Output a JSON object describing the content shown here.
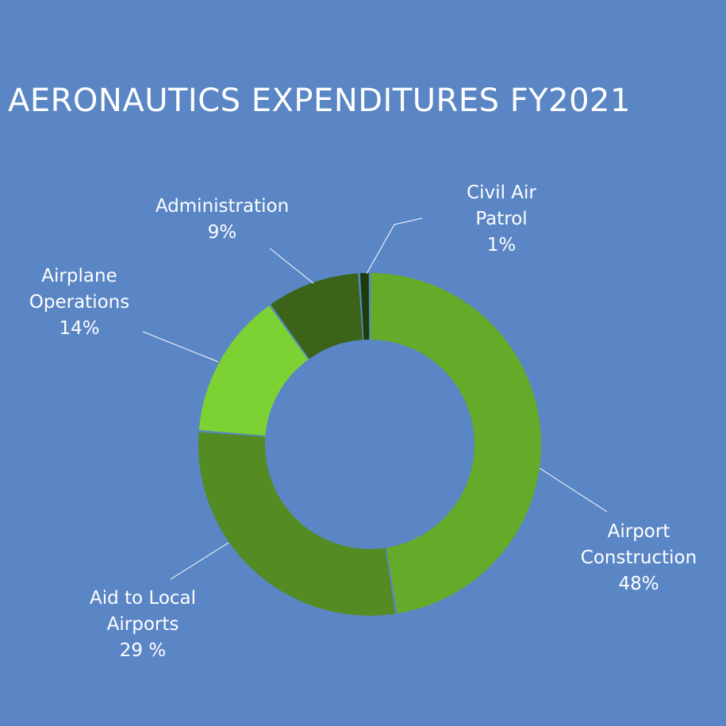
{
  "chart_data": {
    "type": "pie",
    "style": "donut",
    "title": "AERONAUTICS EXPENDITURES FY2021",
    "slices": [
      {
        "name": "Airport Construction",
        "label_lines": [
          "Airport",
          "Construction",
          "48%"
        ],
        "value": 48,
        "color": "#65aa29"
      },
      {
        "name": "Aid to Local Airports",
        "label_lines": [
          "Aid to Local",
          "Airports",
          "29 %"
        ],
        "value": 29,
        "color": "#548b23"
      },
      {
        "name": "Airplane Operations",
        "label_lines": [
          "Airplane",
          "Operations",
          "14%"
        ],
        "value": 14,
        "color": "#7cd233"
      },
      {
        "name": "Administration",
        "label_lines": [
          "Administration",
          "9%"
        ],
        "value": 9,
        "color": "#3b6419"
      },
      {
        "name": "Civil Air Patrol",
        "label_lines": [
          "Civil Air",
          "Patrol",
          "1%"
        ],
        "value": 1,
        "color": "#1e3b0c"
      }
    ],
    "background": "#5a86c5",
    "leader_line_color": "#ffffff"
  }
}
